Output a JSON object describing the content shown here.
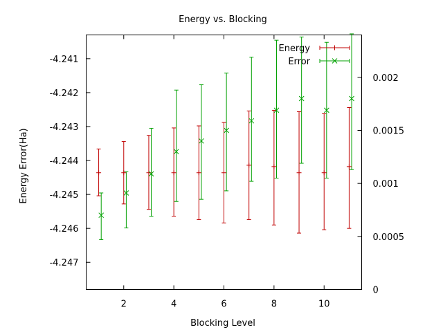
{
  "chart_data": {
    "type": "scatter",
    "title": "Energy vs. Blocking",
    "xlabel": "Blocking Level",
    "ylabel": "Energy Error(Ha)",
    "y2label": "",
    "xlim": [
      0.5,
      11.5
    ],
    "ylim": [
      -4.2478,
      -4.2403
    ],
    "y2lim": [
      0,
      0.0024
    ],
    "xticks": [
      2,
      4,
      6,
      8,
      10
    ],
    "xtick_labels": [
      "2",
      "4",
      "6",
      "8",
      "10"
    ],
    "yticks": [
      -4.241,
      -4.242,
      -4.243,
      -4.244,
      -4.245,
      -4.246,
      -4.247
    ],
    "ytick_labels": [
      "-4.241",
      "-4.242",
      "-4.243",
      "-4.244",
      "-4.245",
      "-4.246",
      "-4.247"
    ],
    "y2ticks": [
      0,
      0.0005,
      0.001,
      0.0015,
      0.002
    ],
    "y2tick_labels": [
      "0",
      "0.0005",
      "0.001",
      "0.0015",
      "0.002"
    ],
    "grid": false,
    "legend_position": "top-right",
    "series": [
      {
        "name": "Energy",
        "axis": "left",
        "color": "#c00000",
        "marker": "plus",
        "x": [
          1,
          2,
          3,
          4,
          5,
          6,
          7,
          8,
          9,
          10,
          11
        ],
        "y": [
          -4.24436,
          -4.24436,
          -4.24436,
          -4.24436,
          -4.24436,
          -4.24436,
          -4.24414,
          -4.24418,
          -4.24436,
          -4.24436,
          -4.24418
        ],
        "ylow": [
          -4.24504,
          -4.24528,
          -4.24544,
          -4.24564,
          -4.24574,
          -4.24584,
          -4.24574,
          -4.2459,
          -4.24614,
          -4.24604,
          -4.246
        ],
        "yhigh": [
          -4.24366,
          -4.24344,
          -4.24326,
          -4.24304,
          -4.24298,
          -4.24288,
          -4.24254,
          -4.24252,
          -4.24256,
          -4.24262,
          -4.24244
        ]
      },
      {
        "name": "Error",
        "axis": "right",
        "color": "#00a000",
        "marker": "cross",
        "x": [
          1.1,
          2.1,
          3.1,
          4.1,
          5.1,
          6.1,
          7.1,
          8.1,
          9.1,
          10.1,
          11.1
        ],
        "y": [
          0.0007,
          0.00091,
          0.00109,
          0.0013,
          0.0014,
          0.0015,
          0.00159,
          0.00169,
          0.0018,
          0.00169,
          0.0018
        ],
        "ylow": [
          0.00047,
          0.00058,
          0.00069,
          0.00083,
          0.00085,
          0.00093,
          0.00102,
          0.00105,
          0.00119,
          0.00105,
          0.00113
        ],
        "yhigh": [
          0.00091,
          0.00111,
          0.00152,
          0.00188,
          0.00193,
          0.00204,
          0.00219,
          0.00235,
          0.00238,
          0.00233,
          0.00241
        ]
      }
    ]
  }
}
